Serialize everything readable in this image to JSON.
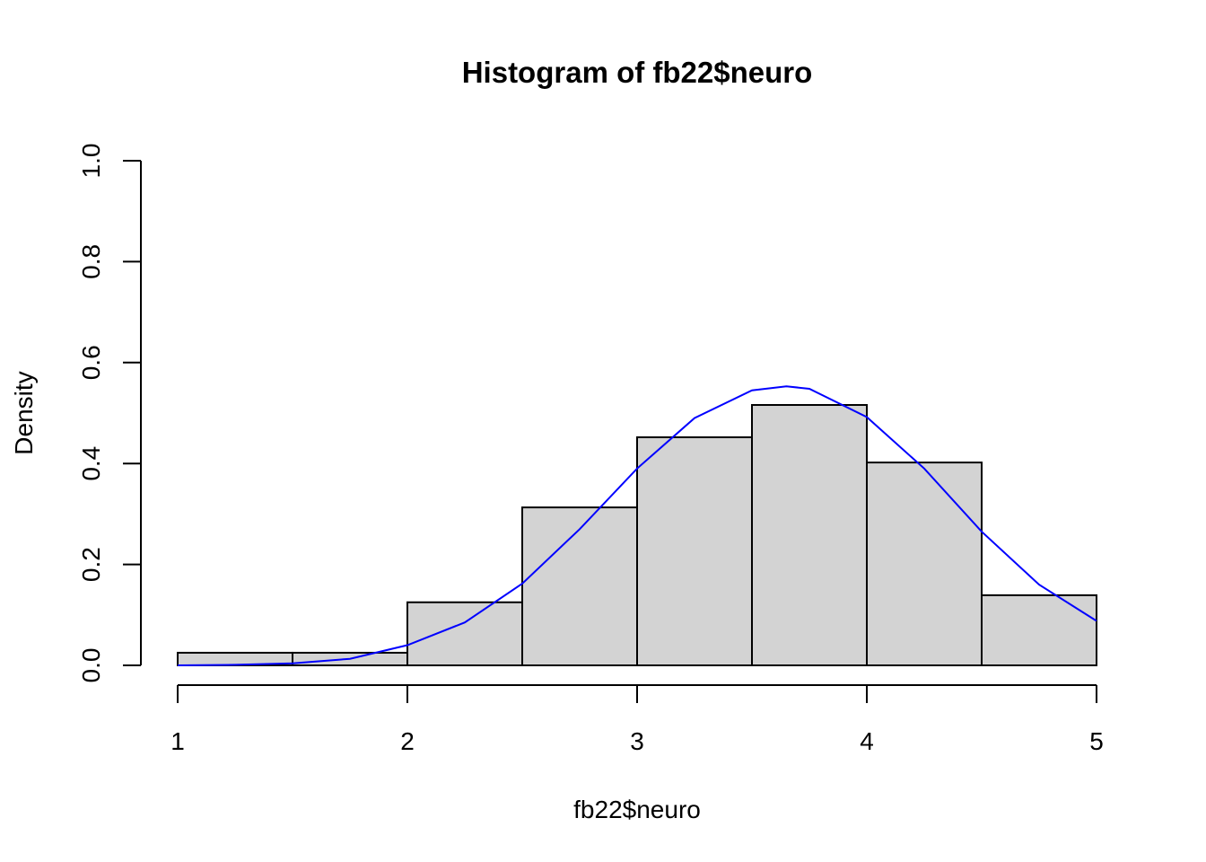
{
  "chart_data": {
    "type": "bar",
    "title": "Histogram of fb22$neuro",
    "xlabel": "fb22$neuro",
    "ylabel": "Density",
    "xlim": [
      1,
      5
    ],
    "ylim": [
      0,
      1.0
    ],
    "x_ticks": [
      1,
      2,
      3,
      4,
      5
    ],
    "y_ticks": [
      0.0,
      0.2,
      0.4,
      0.6,
      0.8,
      1.0
    ],
    "y_tick_labels": [
      "0.0",
      "0.2",
      "0.4",
      "0.6",
      "0.8",
      "1.0"
    ],
    "bins": [
      {
        "from": 1.0,
        "to": 1.5,
        "density": 0.025
      },
      {
        "from": 1.5,
        "to": 2.0,
        "density": 0.025
      },
      {
        "from": 2.0,
        "to": 2.5,
        "density": 0.125
      },
      {
        "from": 2.5,
        "to": 3.0,
        "density": 0.313
      },
      {
        "from": 3.0,
        "to": 3.5,
        "density": 0.452
      },
      {
        "from": 3.5,
        "to": 4.0,
        "density": 0.516
      },
      {
        "from": 4.0,
        "to": 4.5,
        "density": 0.402
      },
      {
        "from": 4.5,
        "to": 5.0,
        "density": 0.139
      }
    ],
    "series": [
      {
        "type": "line",
        "x": [
          1.0,
          1.25,
          1.5,
          1.75,
          2.0,
          2.25,
          2.5,
          2.75,
          3.0,
          3.25,
          3.5,
          3.65,
          3.75,
          4.0,
          4.25,
          4.5,
          4.75,
          5.0
        ],
        "y": [
          0.0,
          0.001,
          0.004,
          0.013,
          0.04,
          0.085,
          0.162,
          0.27,
          0.39,
          0.49,
          0.545,
          0.553,
          0.548,
          0.492,
          0.39,
          0.265,
          0.16,
          0.088
        ]
      }
    ],
    "bar_fill": "#d3d3d3",
    "line_color": "#0000ff",
    "grid": false,
    "legend": "none"
  }
}
